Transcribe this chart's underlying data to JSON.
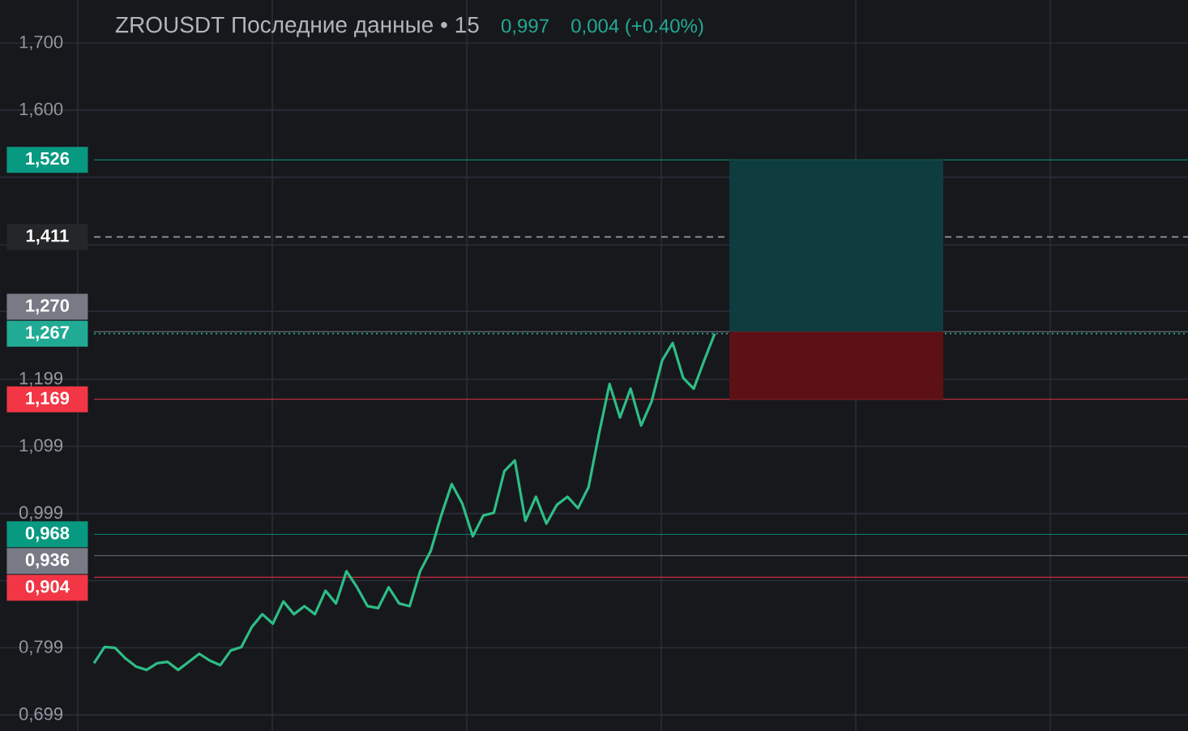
{
  "chart_data": {
    "type": "line",
    "title": "ZROUSDT Последние данные • 15",
    "annotations": [
      "0,997",
      "0,004 (+0.40%)"
    ],
    "categories": [
      null,
      null,
      null,
      null,
      null,
      null,
      null,
      null,
      null,
      null,
      null,
      null,
      null,
      null,
      null,
      null,
      null,
      null,
      null,
      null,
      null,
      null,
      null,
      null,
      null,
      null,
      null,
      null,
      null,
      null,
      null,
      null,
      null,
      null,
      null,
      null,
      null,
      null,
      null,
      null,
      null,
      null,
      null,
      null,
      null,
      null,
      null,
      null,
      null,
      null,
      null,
      null,
      null,
      null,
      null,
      null,
      null,
      null,
      null,
      null
    ],
    "values": [
      0.776,
      0.8,
      0.799,
      0.783,
      0.771,
      0.766,
      0.776,
      0.778,
      0.766,
      0.778,
      0.79,
      0.78,
      0.773,
      0.795,
      0.8,
      0.83,
      0.849,
      0.835,
      0.868,
      0.849,
      0.861,
      0.849,
      0.884,
      0.865,
      0.913,
      0.889,
      0.861,
      0.858,
      0.889,
      0.865,
      0.861,
      0.913,
      0.943,
      0.996,
      1.043,
      1.014,
      0.965,
      0.996,
      1.0,
      1.062,
      1.078,
      0.988,
      1.024,
      0.984,
      1.012,
      1.024,
      1.007,
      1.038,
      1.118,
      1.192,
      1.142,
      1.185,
      1.13,
      1.166,
      1.227,
      1.253,
      1.201,
      1.185,
      1.227,
      1.267
    ],
    "color": "#2ebd85",
    "line_style": "solid",
    "grid": true,
    "tick_labels": "y",
    "ylim": [
      0.675,
      1.764
    ],
    "yticks": [
      {
        "value": 1.7,
        "label": "1,700"
      },
      {
        "value": 1.6,
        "label": "1,600"
      },
      {
        "value": 1.5,
        "label": null
      },
      {
        "value": 1.399,
        "label": null
      },
      {
        "value": 1.3,
        "label": null
      },
      {
        "value": 1.199,
        "label": "1,199"
      },
      {
        "value": 1.099,
        "label": "1,099"
      },
      {
        "value": 0.999,
        "label": "0,999"
      },
      {
        "value": 0.899,
        "label": null
      },
      {
        "value": 0.799,
        "label": "0,799"
      },
      {
        "value": 0.699,
        "label": "0,699"
      }
    ],
    "ref_lines": [
      {
        "axis": "y",
        "value": 1.526,
        "label": "1,526",
        "color": "#089981",
        "line_style": "solid"
      },
      {
        "axis": "y",
        "value": 1.411,
        "label": "1,411",
        "color": "#9598a1",
        "line_style": "dashed"
      },
      {
        "axis": "y",
        "value": 1.27,
        "label": "1,270",
        "color": "#787b86",
        "line_style": "solid"
      },
      {
        "axis": "y",
        "value": 1.267,
        "label": "1,267",
        "color": "#22ab94",
        "line_style": "dotted"
      },
      {
        "axis": "y",
        "value": 1.169,
        "label": "1,169",
        "color": "#f23645",
        "line_style": "solid"
      },
      {
        "axis": "y",
        "value": 0.968,
        "label": "0,968",
        "color": "#089981",
        "line_style": "solid"
      },
      {
        "axis": "y",
        "value": 0.936,
        "label": "0,936",
        "color": "#787b86",
        "line_style": "solid"
      },
      {
        "axis": "y",
        "value": 0.904,
        "label": "0,904",
        "color": "#f23645",
        "line_style": "solid"
      }
    ]
  }
}
